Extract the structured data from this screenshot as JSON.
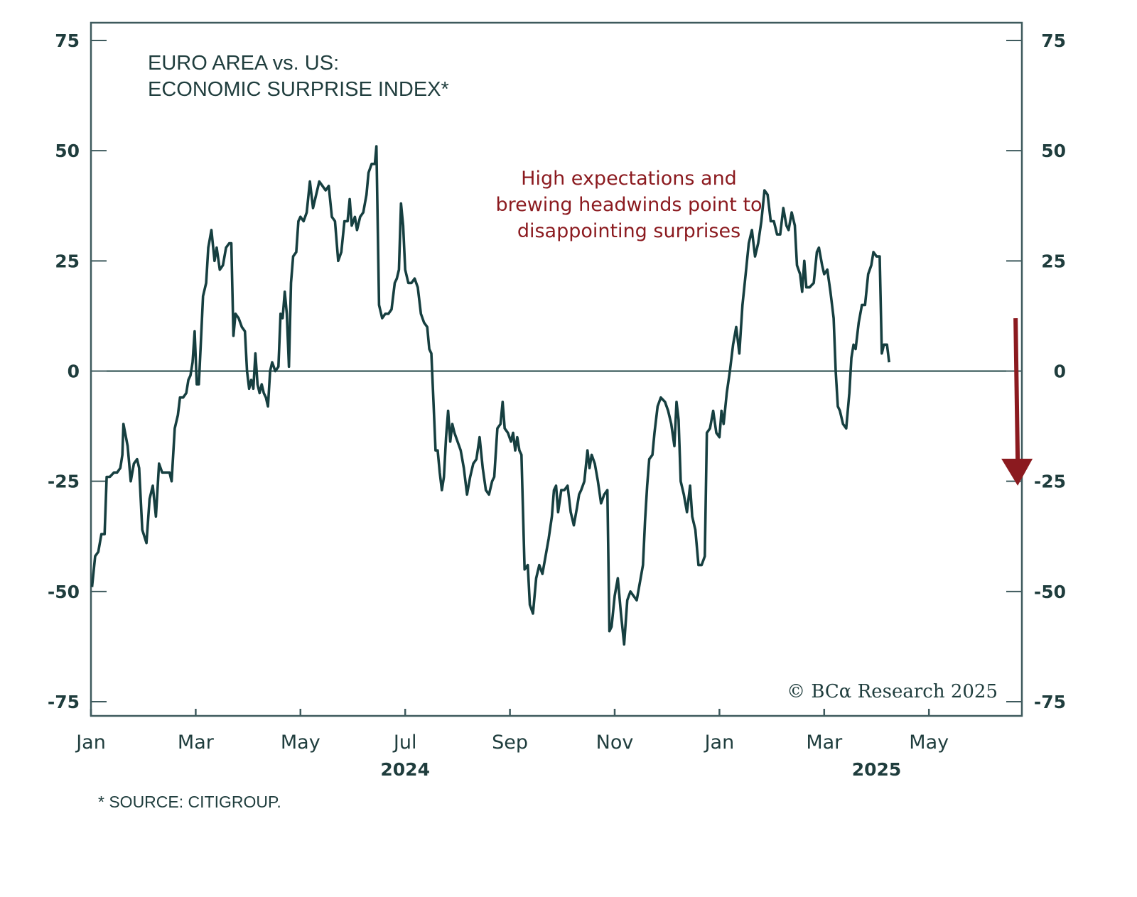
{
  "chart_data": {
    "type": "line",
    "title_lines": [
      "EURO AREA vs. US:",
      "ECONOMIC SURPRISE INDEX*"
    ],
    "xlabel": "",
    "ylabel": "",
    "ylim": [
      -75,
      75
    ],
    "yticks": [
      75,
      50,
      25,
      0,
      -25,
      -50,
      -75
    ],
    "ytick_labels": [
      "75",
      "50",
      "25",
      "0",
      "-25",
      "-50",
      "-75"
    ],
    "y_axis_sides": "both",
    "x_unit": "months since Jan 2024",
    "xlim": [
      0,
      17.9
    ],
    "xticks": [
      0,
      2,
      4,
      6,
      8,
      10,
      12,
      14,
      16
    ],
    "xtick_labels": [
      "Jan",
      "Mar",
      "May",
      "Jul",
      "Sep",
      "Nov",
      "Jan",
      "Mar",
      "May"
    ],
    "year_labels": [
      {
        "label": "2024",
        "x": 6
      },
      {
        "label": "2025",
        "x": 15
      }
    ],
    "zero_line": true,
    "grid": false,
    "series": [
      {
        "name": "Euro Area vs. US Economic Surprise Index",
        "color": "#163f40",
        "points": [
          [
            0.02,
            -49
          ],
          [
            0.08,
            -42
          ],
          [
            0.14,
            -41
          ],
          [
            0.2,
            -37
          ],
          [
            0.26,
            -37
          ],
          [
            0.3,
            -24
          ],
          [
            0.36,
            -24
          ],
          [
            0.44,
            -23
          ],
          [
            0.5,
            -23
          ],
          [
            0.56,
            -22
          ],
          [
            0.6,
            -19
          ],
          [
            0.62,
            -12
          ],
          [
            0.7,
            -17
          ],
          [
            0.76,
            -25
          ],
          [
            0.82,
            -21
          ],
          [
            0.88,
            -20
          ],
          [
            0.92,
            -22
          ],
          [
            0.98,
            -36
          ],
          [
            1.06,
            -39
          ],
          [
            1.12,
            -29
          ],
          [
            1.18,
            -26
          ],
          [
            1.24,
            -33
          ],
          [
            1.3,
            -21
          ],
          [
            1.36,
            -23
          ],
          [
            1.44,
            -23
          ],
          [
            1.5,
            -23
          ],
          [
            1.54,
            -25
          ],
          [
            1.6,
            -13
          ],
          [
            1.66,
            -10
          ],
          [
            1.7,
            -6
          ],
          [
            1.76,
            -6
          ],
          [
            1.82,
            -5
          ],
          [
            1.86,
            -2
          ],
          [
            1.9,
            -1
          ],
          [
            1.94,
            2
          ],
          [
            1.98,
            9
          ],
          [
            2.02,
            -3
          ],
          [
            2.06,
            -3
          ],
          [
            2.1,
            7
          ],
          [
            2.14,
            17
          ],
          [
            2.2,
            20
          ],
          [
            2.24,
            28
          ],
          [
            2.3,
            32
          ],
          [
            2.36,
            25
          ],
          [
            2.4,
            28
          ],
          [
            2.46,
            23
          ],
          [
            2.52,
            24
          ],
          [
            2.58,
            28
          ],
          [
            2.64,
            29
          ],
          [
            2.68,
            29
          ],
          [
            2.72,
            8
          ],
          [
            2.76,
            13
          ],
          [
            2.82,
            12
          ],
          [
            2.88,
            10
          ],
          [
            2.94,
            9
          ],
          [
            2.98,
            0
          ],
          [
            3.02,
            -4
          ],
          [
            3.06,
            -2
          ],
          [
            3.1,
            -4
          ],
          [
            3.14,
            4
          ],
          [
            3.18,
            -3
          ],
          [
            3.22,
            -5
          ],
          [
            3.26,
            -3
          ],
          [
            3.3,
            -5
          ],
          [
            3.34,
            -6
          ],
          [
            3.38,
            -8
          ],
          [
            3.42,
            0
          ],
          [
            3.46,
            2
          ],
          [
            3.52,
            0
          ],
          [
            3.58,
            1
          ],
          [
            3.62,
            13
          ],
          [
            3.66,
            12
          ],
          [
            3.7,
            18
          ],
          [
            3.74,
            13
          ],
          [
            3.78,
            1
          ],
          [
            3.82,
            20
          ],
          [
            3.86,
            26
          ],
          [
            3.92,
            27
          ],
          [
            3.96,
            34
          ],
          [
            4.0,
            35
          ],
          [
            4.06,
            34
          ],
          [
            4.12,
            36
          ],
          [
            4.18,
            43
          ],
          [
            4.24,
            37
          ],
          [
            4.3,
            40
          ],
          [
            4.36,
            43
          ],
          [
            4.42,
            42
          ],
          [
            4.48,
            41
          ],
          [
            4.54,
            42
          ],
          [
            4.6,
            35
          ],
          [
            4.66,
            34
          ],
          [
            4.72,
            25
          ],
          [
            4.78,
            27
          ],
          [
            4.84,
            34
          ],
          [
            4.9,
            34
          ],
          [
            4.94,
            39
          ],
          [
            4.98,
            33
          ],
          [
            5.04,
            35
          ],
          [
            5.08,
            32
          ],
          [
            5.14,
            35
          ],
          [
            5.2,
            36
          ],
          [
            5.26,
            40
          ],
          [
            5.3,
            45
          ],
          [
            5.36,
            47
          ],
          [
            5.42,
            47
          ],
          [
            5.45,
            51
          ],
          [
            5.5,
            15
          ],
          [
            5.56,
            12
          ],
          [
            5.62,
            13
          ],
          [
            5.68,
            13
          ],
          [
            5.74,
            14
          ],
          [
            5.8,
            20
          ],
          [
            5.84,
            21
          ],
          [
            5.88,
            23
          ],
          [
            5.92,
            38
          ],
          [
            5.96,
            33
          ],
          [
            6.0,
            23
          ],
          [
            6.06,
            20
          ],
          [
            6.12,
            20
          ],
          [
            6.18,
            21
          ],
          [
            6.24,
            19
          ],
          [
            6.3,
            13
          ],
          [
            6.36,
            11
          ],
          [
            6.42,
            10
          ],
          [
            6.46,
            5
          ],
          [
            6.5,
            4
          ],
          [
            6.54,
            -7
          ],
          [
            6.58,
            -18
          ],
          [
            6.62,
            -18
          ],
          [
            6.66,
            -23
          ],
          [
            6.7,
            -27
          ],
          [
            6.74,
            -24
          ],
          [
            6.78,
            -15
          ],
          [
            6.82,
            -9
          ],
          [
            6.86,
            -16
          ],
          [
            6.9,
            -12
          ],
          [
            6.94,
            -14
          ],
          [
            7.0,
            -16
          ],
          [
            7.06,
            -18
          ],
          [
            7.12,
            -22
          ],
          [
            7.18,
            -28
          ],
          [
            7.24,
            -24
          ],
          [
            7.3,
            -21
          ],
          [
            7.36,
            -20
          ],
          [
            7.42,
            -15
          ],
          [
            7.48,
            -22
          ],
          [
            7.54,
            -27
          ],
          [
            7.6,
            -28
          ],
          [
            7.66,
            -25
          ],
          [
            7.7,
            -24
          ],
          [
            7.76,
            -13
          ],
          [
            7.82,
            -12
          ],
          [
            7.86,
            -7
          ],
          [
            7.9,
            -13
          ],
          [
            7.96,
            -14
          ],
          [
            8.02,
            -16
          ],
          [
            8.06,
            -14
          ],
          [
            8.1,
            -18
          ],
          [
            8.14,
            -15
          ],
          [
            8.18,
            -18
          ],
          [
            8.22,
            -19
          ],
          [
            8.28,
            -45
          ],
          [
            8.34,
            -44
          ],
          [
            8.38,
            -53
          ],
          [
            8.44,
            -55
          ],
          [
            8.5,
            -47
          ],
          [
            8.56,
            -44
          ],
          [
            8.62,
            -46
          ],
          [
            8.68,
            -42
          ],
          [
            8.74,
            -38
          ],
          [
            8.8,
            -33
          ],
          [
            8.84,
            -27
          ],
          [
            8.88,
            -26
          ],
          [
            8.92,
            -32
          ],
          [
            8.98,
            -27
          ],
          [
            9.04,
            -27
          ],
          [
            9.1,
            -26
          ],
          [
            9.16,
            -32
          ],
          [
            9.22,
            -35
          ],
          [
            9.28,
            -31
          ],
          [
            9.32,
            -28
          ],
          [
            9.36,
            -27
          ],
          [
            9.42,
            -25
          ],
          [
            9.48,
            -18
          ],
          [
            9.52,
            -22
          ],
          [
            9.56,
            -19
          ],
          [
            9.62,
            -21
          ],
          [
            9.68,
            -25
          ],
          [
            9.74,
            -30
          ],
          [
            9.8,
            -28
          ],
          [
            9.86,
            -27
          ],
          [
            9.9,
            -59
          ],
          [
            9.94,
            -58
          ],
          [
            10.0,
            -51
          ],
          [
            10.06,
            -47
          ],
          [
            10.12,
            -55
          ],
          [
            10.18,
            -62
          ],
          [
            10.24,
            -52
          ],
          [
            10.3,
            -50
          ],
          [
            10.36,
            -51
          ],
          [
            10.42,
            -52
          ],
          [
            10.48,
            -48
          ],
          [
            10.54,
            -44
          ],
          [
            10.58,
            -34
          ],
          [
            10.62,
            -26
          ],
          [
            10.66,
            -20
          ],
          [
            10.72,
            -19
          ],
          [
            10.76,
            -14
          ],
          [
            10.82,
            -8
          ],
          [
            10.88,
            -6
          ],
          [
            10.96,
            -7
          ],
          [
            11.02,
            -9
          ],
          [
            11.08,
            -12
          ],
          [
            11.14,
            -17
          ],
          [
            11.18,
            -7
          ],
          [
            11.22,
            -11
          ],
          [
            11.26,
            -25
          ],
          [
            11.32,
            -28
          ],
          [
            11.38,
            -32
          ],
          [
            11.44,
            -26
          ],
          [
            11.48,
            -33
          ],
          [
            11.54,
            -36
          ],
          [
            11.6,
            -44
          ],
          [
            11.66,
            -44
          ],
          [
            11.72,
            -42
          ],
          [
            11.76,
            -14
          ],
          [
            11.82,
            -13
          ],
          [
            11.88,
            -9
          ],
          [
            11.94,
            -14
          ],
          [
            12.0,
            -15
          ],
          [
            12.04,
            -9
          ],
          [
            12.08,
            -12
          ],
          [
            12.14,
            -5
          ],
          [
            12.2,
            0
          ],
          [
            12.26,
            6
          ],
          [
            12.32,
            10
          ],
          [
            12.38,
            4
          ],
          [
            12.44,
            15
          ],
          [
            12.5,
            22
          ],
          [
            12.56,
            29
          ],
          [
            12.62,
            32
          ],
          [
            12.68,
            26
          ],
          [
            12.74,
            29
          ],
          [
            12.8,
            34
          ],
          [
            12.86,
            41
          ],
          [
            12.92,
            40
          ],
          [
            12.98,
            34
          ],
          [
            13.04,
            34
          ],
          [
            13.1,
            31
          ],
          [
            13.16,
            31
          ],
          [
            13.22,
            37
          ],
          [
            13.28,
            33
          ],
          [
            13.32,
            32
          ],
          [
            13.38,
            36
          ],
          [
            13.44,
            33
          ],
          [
            13.48,
            24
          ],
          [
            13.54,
            22
          ],
          [
            13.58,
            18
          ],
          [
            13.62,
            25
          ],
          [
            13.66,
            19
          ],
          [
            13.72,
            19
          ],
          [
            13.8,
            20
          ],
          [
            13.86,
            27
          ],
          [
            13.9,
            28
          ],
          [
            13.96,
            24
          ],
          [
            14.0,
            22
          ],
          [
            14.06,
            23
          ],
          [
            14.12,
            18
          ],
          [
            14.18,
            12
          ],
          [
            14.22,
            0
          ],
          [
            14.26,
            -8
          ],
          [
            14.3,
            -9
          ],
          [
            14.36,
            -12
          ],
          [
            14.42,
            -13
          ],
          [
            14.48,
            -5
          ],
          [
            14.52,
            3
          ],
          [
            14.56,
            6
          ],
          [
            14.6,
            5
          ],
          [
            14.66,
            11
          ],
          [
            14.72,
            15
          ],
          [
            14.78,
            15
          ],
          [
            14.84,
            22
          ],
          [
            14.9,
            24
          ],
          [
            14.94,
            27
          ],
          [
            15.0,
            26
          ],
          [
            15.06,
            26
          ],
          [
            15.1,
            4
          ],
          [
            15.14,
            6
          ],
          [
            15.2,
            6
          ],
          [
            15.24,
            2
          ]
        ]
      }
    ],
    "annotations": [
      {
        "text_lines": [
          "High expectations and",
          "brewing headwinds point to",
          "disappointing surprises"
        ],
        "color": "#8b1a1f"
      },
      {
        "type": "arrow",
        "direction": "down",
        "from_y": 12,
        "to_y": -26,
        "x": 17.6,
        "color": "#8b1a1f"
      }
    ],
    "copyright": "© BCα Research 2025",
    "source": "* SOURCE: CITIGROUP."
  }
}
